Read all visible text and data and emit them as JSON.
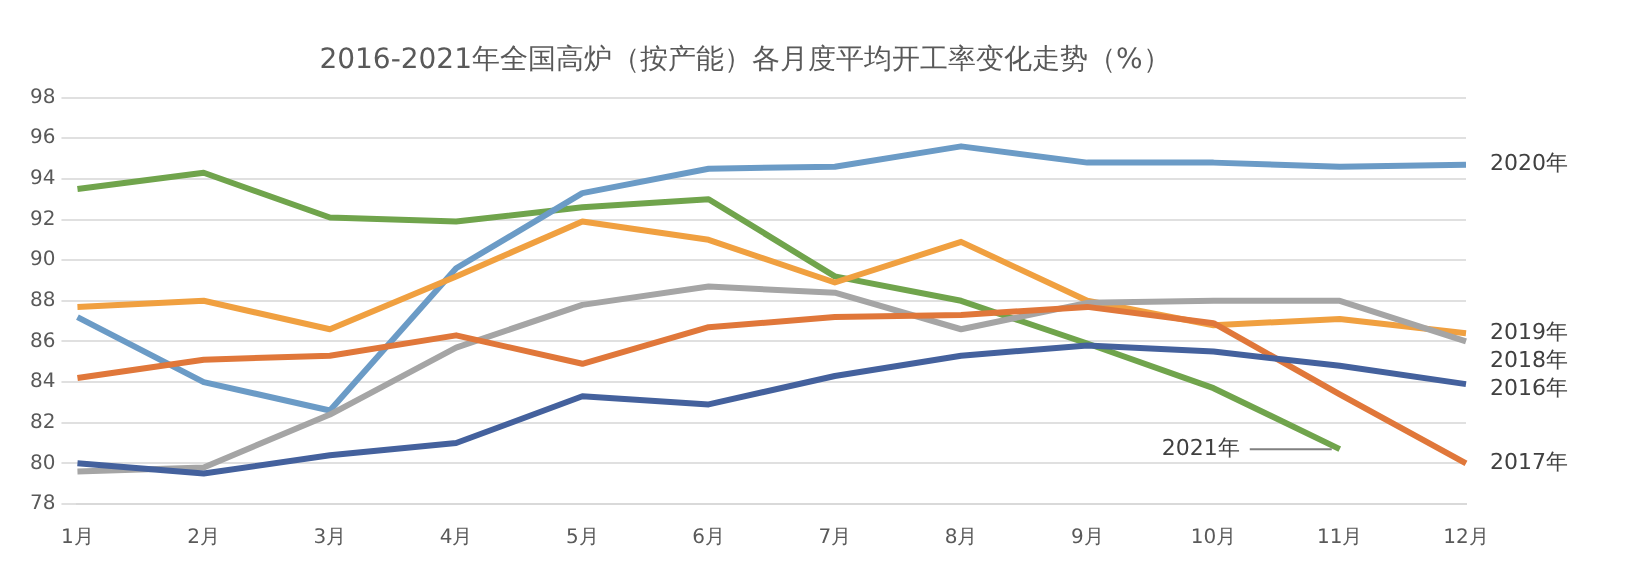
{
  "chart_data": {
    "type": "line",
    "title": "2016-2021年全国高炉（按产能）各月度平均开工率变化走势（%）",
    "categories": [
      "1月",
      "2月",
      "3月",
      "4月",
      "5月",
      "6月",
      "7月",
      "8月",
      "9月",
      "10月",
      "11月",
      "12月"
    ],
    "series": [
      {
        "name": "2016年",
        "color": "#44619d",
        "values": [
          80.0,
          79.5,
          80.4,
          81.0,
          83.3,
          82.9,
          84.3,
          85.3,
          85.8,
          85.5,
          84.8,
          83.9
        ]
      },
      {
        "name": "2017年",
        "color": "#e0773a",
        "values": [
          84.2,
          85.1,
          85.3,
          86.3,
          84.9,
          86.7,
          87.2,
          87.3,
          87.7,
          86.9,
          83.4,
          80.0
        ]
      },
      {
        "name": "2018年",
        "color": "#a5a5a5",
        "values": [
          79.6,
          79.8,
          82.4,
          85.7,
          87.8,
          88.7,
          88.4,
          86.6,
          87.9,
          88.0,
          88.0,
          86.0
        ]
      },
      {
        "name": "2019年",
        "color": "#f0a040",
        "values": [
          87.7,
          88.0,
          86.6,
          89.2,
          91.9,
          91.0,
          88.9,
          90.9,
          88.0,
          86.8,
          87.1,
          86.4
        ]
      },
      {
        "name": "2020年",
        "color": "#6b9bc6",
        "values": [
          87.2,
          84.0,
          82.6,
          89.6,
          93.3,
          94.5,
          94.6,
          95.6,
          94.8,
          94.8,
          94.6,
          94.7
        ]
      },
      {
        "name": "2021年",
        "color": "#70a44c",
        "values": [
          93.5,
          94.3,
          92.1,
          91.9,
          92.6,
          93.0,
          89.2,
          88.0,
          85.9,
          83.7,
          80.7,
          null
        ]
      }
    ],
    "ylim": [
      78,
      98
    ],
    "yticks": [
      78,
      80,
      82,
      84,
      86,
      88,
      90,
      92,
      94,
      96,
      98
    ],
    "grid": "y",
    "legend": false,
    "marker": "none",
    "line_style": "solid"
  }
}
